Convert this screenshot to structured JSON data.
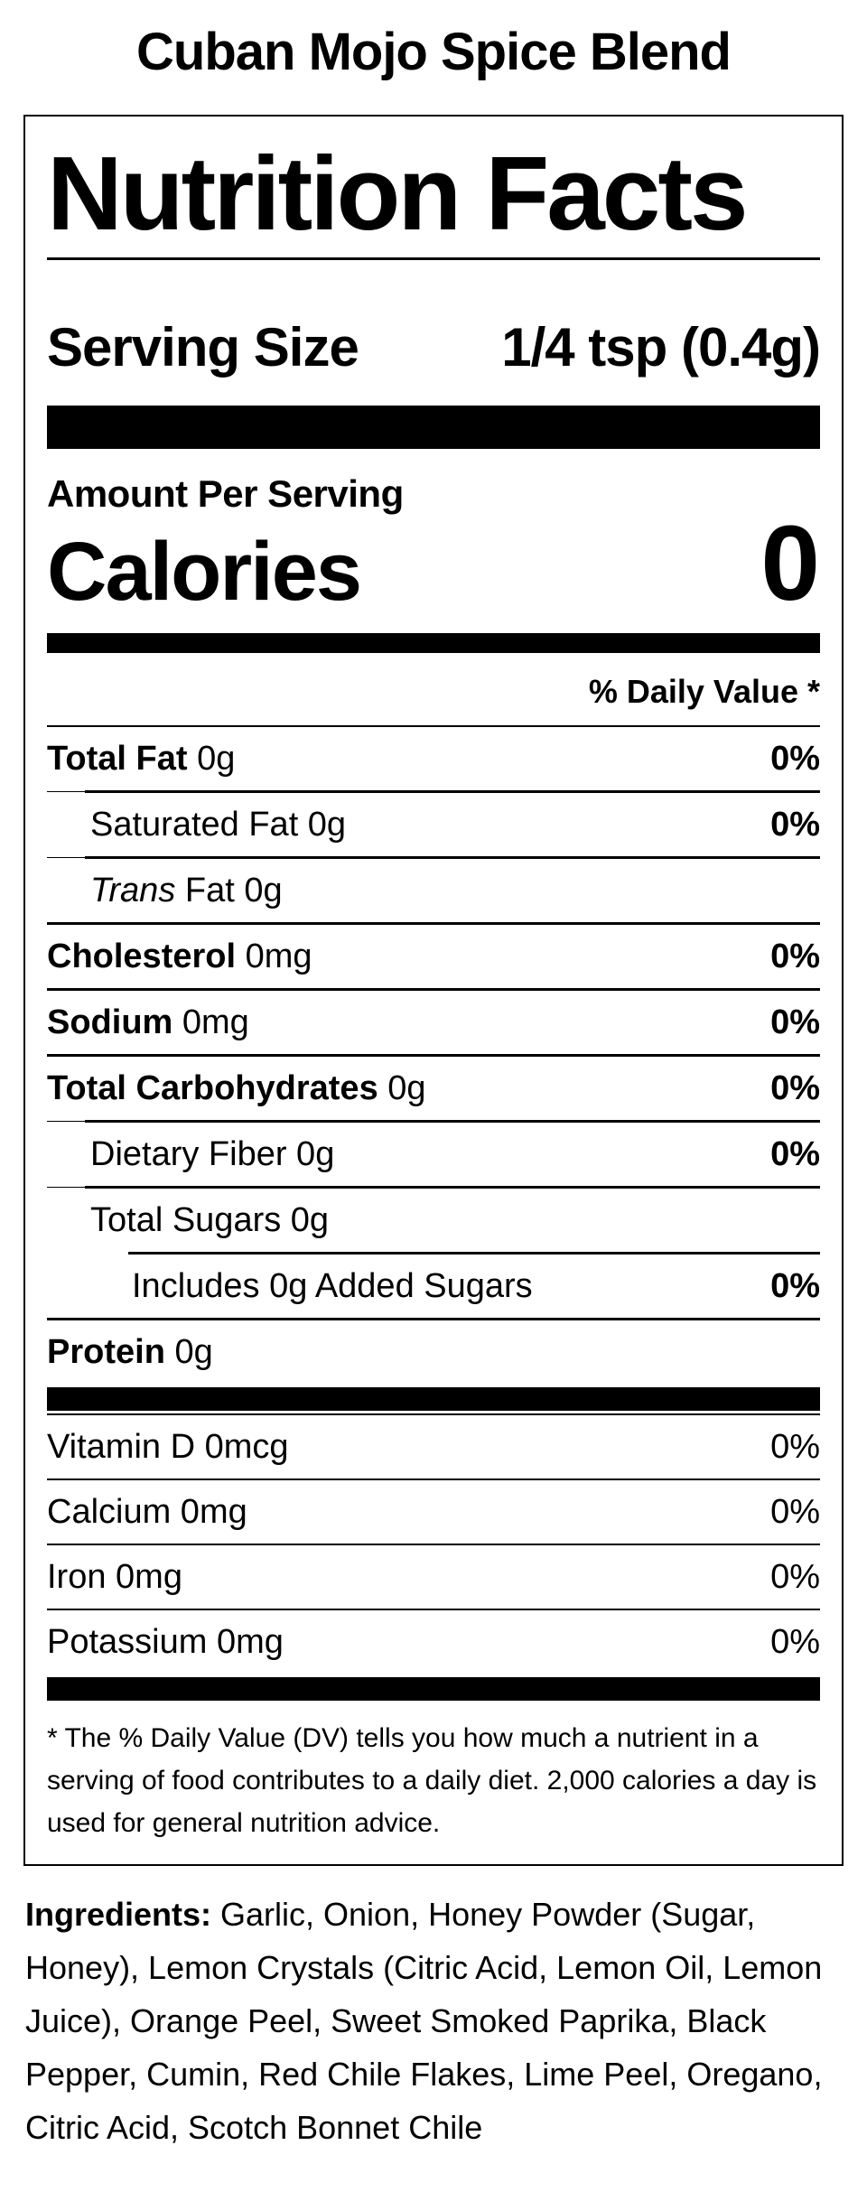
{
  "colors": {
    "text": "#000000",
    "background": "#ffffff"
  },
  "page": {
    "title": "Cuban Mojo Spice Blend"
  },
  "label": {
    "title": "Nutrition Facts",
    "serving": {
      "label": "Serving Size",
      "value": "1/4 tsp (0.4g)"
    },
    "amount_per_serving": "Amount Per Serving",
    "calories": {
      "label": "Calories",
      "value": "0"
    },
    "daily_value_header": "% Daily Value *",
    "rows": [
      {
        "parts": [
          {
            "t": "Total Fat",
            "b": true
          },
          {
            "t": " 0g"
          }
        ],
        "dv": "0%",
        "dvBold": true,
        "level": 0,
        "sep": "thin"
      },
      {
        "parts": [
          {
            "t": "Saturated Fat 0g"
          }
        ],
        "dv": "0%",
        "dvBold": true,
        "level": 1,
        "sep": "sub"
      },
      {
        "parts": [
          {
            "t": "Trans",
            "i": true
          },
          {
            "t": " Fat 0g"
          }
        ],
        "dv": "",
        "dvBold": false,
        "level": 1,
        "sep": "sub"
      },
      {
        "parts": [
          {
            "t": "Cholesterol",
            "b": true
          },
          {
            "t": " 0mg"
          }
        ],
        "dv": "0%",
        "dvBold": true,
        "level": 0,
        "sep": "full"
      },
      {
        "parts": [
          {
            "t": "Sodium",
            "b": true
          },
          {
            "t": " 0mg"
          }
        ],
        "dv": "0%",
        "dvBold": true,
        "level": 0,
        "sep": "full"
      },
      {
        "parts": [
          {
            "t": "Total Carbohydrates",
            "b": true
          },
          {
            "t": " 0g"
          }
        ],
        "dv": "0%",
        "dvBold": true,
        "level": 0,
        "sep": "full"
      },
      {
        "parts": [
          {
            "t": "Dietary Fiber 0g"
          }
        ],
        "dv": "0%",
        "dvBold": true,
        "level": 1,
        "sep": "sub"
      },
      {
        "parts": [
          {
            "t": "Total Sugars 0g"
          }
        ],
        "dv": "",
        "dvBold": false,
        "level": 1,
        "sep": "sub"
      },
      {
        "parts": [
          {
            "t": "Includes 0g Added Sugars"
          }
        ],
        "dv": "0%",
        "dvBold": true,
        "level": 2,
        "sep": "sub2"
      },
      {
        "parts": [
          {
            "t": "Protein",
            "b": true
          },
          {
            "t": " 0g"
          }
        ],
        "dv": "",
        "dvBold": false,
        "level": 0,
        "sep": "full"
      }
    ],
    "vitamins": [
      {
        "parts": [
          {
            "t": "Vitamin D 0mcg"
          }
        ],
        "dv": "0%"
      },
      {
        "parts": [
          {
            "t": "Calcium 0mg"
          }
        ],
        "dv": "0%"
      },
      {
        "parts": [
          {
            "t": "Iron 0mg"
          }
        ],
        "dv": "0%"
      },
      {
        "parts": [
          {
            "t": "Potassium 0mg"
          }
        ],
        "dv": "0%"
      }
    ],
    "footnote": "* The % Daily Value (DV) tells you how much a nutrient in a serving of food contributes to a daily diet. 2,000 calories a day is used for general nutrition advice."
  },
  "ingredients": {
    "label": "Ingredients:",
    "text": " Garlic, Onion, Honey Powder (Sugar, Honey), Lemon Crystals (Citric Acid, Lemon Oil, Lemon Juice), Orange Peel, Sweet Smoked Paprika, Black Pepper, Cumin, Red Chile Flakes, Lime Peel, Oregano, Citric Acid, Scotch Bonnet Chile"
  }
}
